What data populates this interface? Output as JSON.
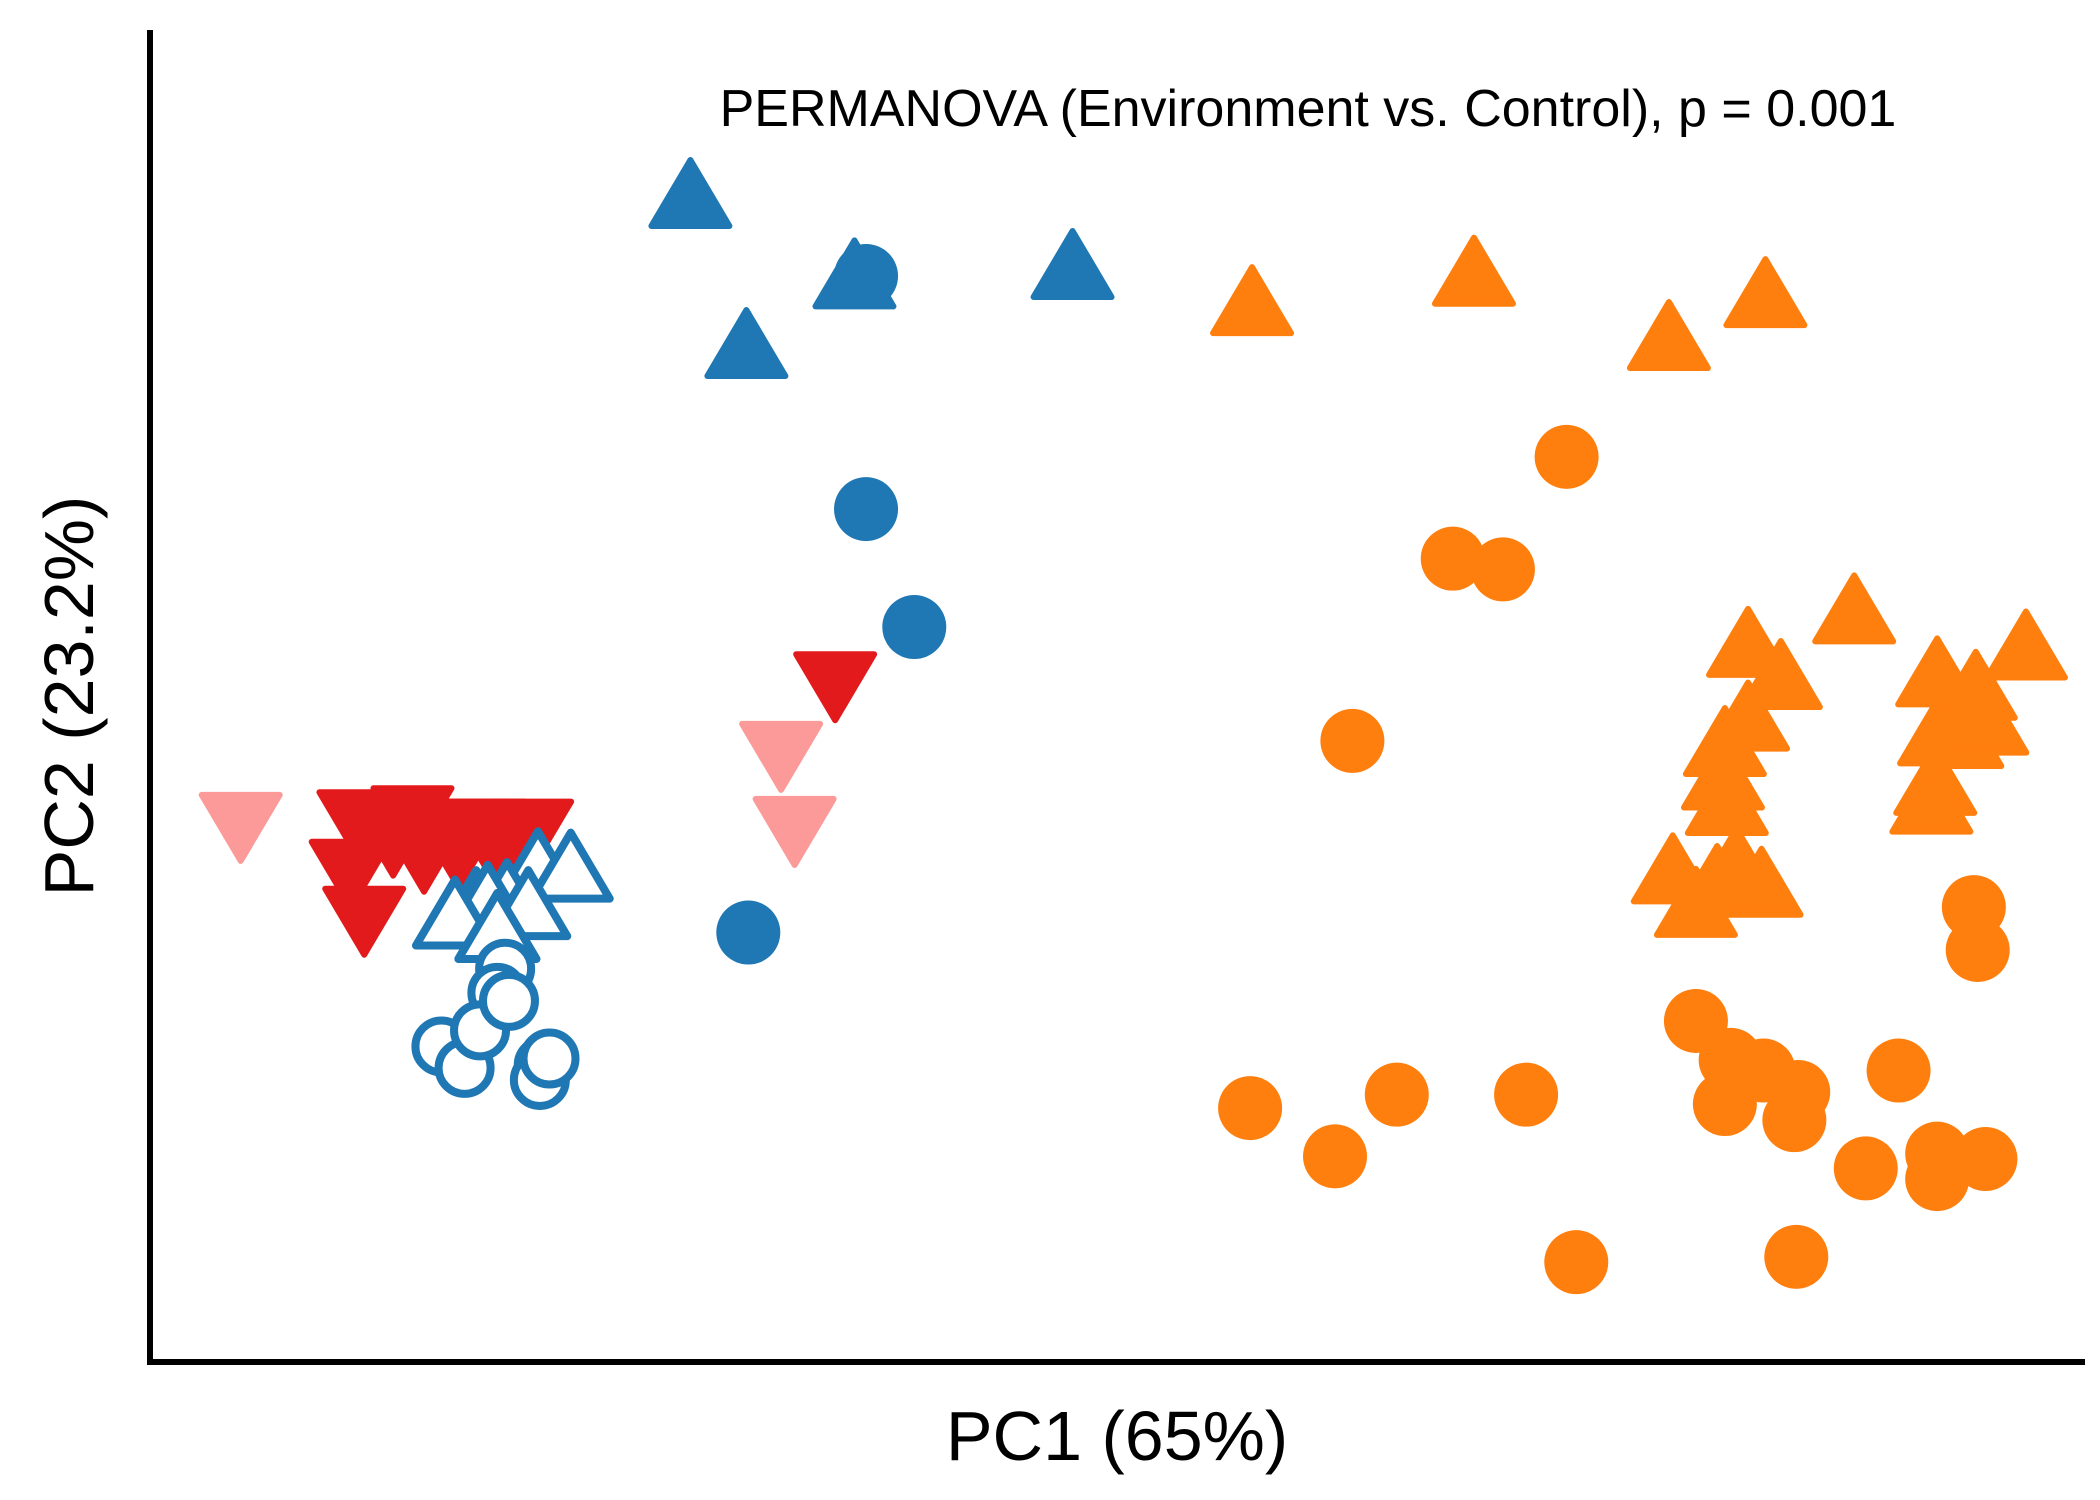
{
  "chart_data": {
    "type": "scatter",
    "title": "",
    "xlabel": "PC1 (65%)",
    "ylabel": "PC2 (23.2%)",
    "annotation": "PERMANOVA (Environment vs. Control), p = 0.001",
    "xlim": [
      0,
      1000
    ],
    "ylim": [
      0,
      1000
    ],
    "ticks_shown": false,
    "grid": false,
    "legend": "none",
    "series": [
      {
        "marker": "triangle-up",
        "fill": "filled",
        "color": "#1F77B4",
        "points": [
          [
            280,
            865
          ],
          [
            365,
            805
          ],
          [
            478,
            812
          ],
          [
            309,
            753
          ]
        ]
      },
      {
        "marker": "circle",
        "fill": "filled",
        "color": "#1F77B4",
        "points": [
          [
            371,
            809
          ],
          [
            371,
            635
          ],
          [
            396,
            547
          ],
          [
            310,
            319
          ]
        ]
      },
      {
        "marker": "triangle-up",
        "fill": "filled",
        "color": "#FF7F0E",
        "points": [
          [
            571,
            785
          ],
          [
            686,
            807
          ],
          [
            837,
            791
          ],
          [
            787,
            759
          ],
          [
            883,
            555
          ],
          [
            828,
            530
          ],
          [
            845,
            506
          ],
          [
            972,
            528
          ],
          [
            926,
            508
          ],
          [
            946,
            498
          ],
          [
            828,
            475
          ],
          [
            927,
            464
          ],
          [
            939,
            462
          ],
          [
            952,
            472
          ],
          [
            816,
            456
          ],
          [
            925,
            427
          ],
          [
            815,
            431
          ],
          [
            817,
            412
          ],
          [
            923,
            413
          ],
          [
            789,
            361
          ],
          [
            822,
            366
          ],
          [
            812,
            353
          ],
          [
            835,
            351
          ],
          [
            801,
            336
          ]
        ]
      },
      {
        "marker": "circle",
        "fill": "filled",
        "color": "#FF7F0E",
        "points": [
          [
            734,
            674
          ],
          [
            675,
            598
          ],
          [
            701,
            590
          ],
          [
            623,
            462
          ],
          [
            945,
            338
          ],
          [
            947,
            306
          ],
          [
            801,
            253
          ],
          [
            819,
            224
          ],
          [
            836,
            216
          ],
          [
            906,
            216
          ],
          [
            816,
            191
          ],
          [
            854,
            200
          ],
          [
            713,
            198
          ],
          [
            852,
            179
          ],
          [
            926,
            154
          ],
          [
            889,
            143
          ],
          [
            951,
            150
          ],
          [
            926,
            135
          ],
          [
            646,
            198
          ],
          [
            570,
            188
          ],
          [
            614,
            152
          ],
          [
            739,
            73
          ],
          [
            853,
            77
          ]
        ]
      },
      {
        "marker": "triangle-down",
        "fill": "filled",
        "color": "#E31A1C",
        "points": [
          [
            355,
            508
          ],
          [
            108,
            405
          ],
          [
            136,
            408
          ],
          [
            126,
            392
          ],
          [
            174,
            398
          ],
          [
            160,
            383
          ],
          [
            165,
            398
          ],
          [
            198,
            398
          ],
          [
            187,
            376
          ],
          [
            142,
            380
          ],
          [
            104,
            368
          ],
          [
            111,
            333
          ]
        ]
      },
      {
        "marker": "triangle-down",
        "fill": "filled",
        "color": "#FB9A99",
        "points": [
          [
            47,
            403
          ],
          [
            327,
            456
          ],
          [
            334,
            400
          ]
        ]
      },
      {
        "marker": "triangle-up",
        "fill": "open",
        "color": "#1F77B4",
        "points": [
          [
            201,
            364
          ],
          [
            169,
            335
          ],
          [
            185,
            341
          ],
          [
            175,
            339
          ],
          [
            218,
            363
          ],
          [
            180,
            318
          ],
          [
            158,
            328
          ],
          [
            196,
            335
          ],
          [
            180,
            318
          ]
        ]
      },
      {
        "marker": "circle",
        "fill": "open",
        "color": "#1F77B4",
        "points": [
          [
            184,
            292
          ],
          [
            180,
            274
          ],
          [
            151,
            234
          ],
          [
            163,
            218
          ],
          [
            204,
            220
          ],
          [
            202,
            209
          ],
          [
            171,
            246
          ],
          [
            186,
            268
          ],
          [
            207,
            225
          ]
        ]
      }
    ]
  }
}
